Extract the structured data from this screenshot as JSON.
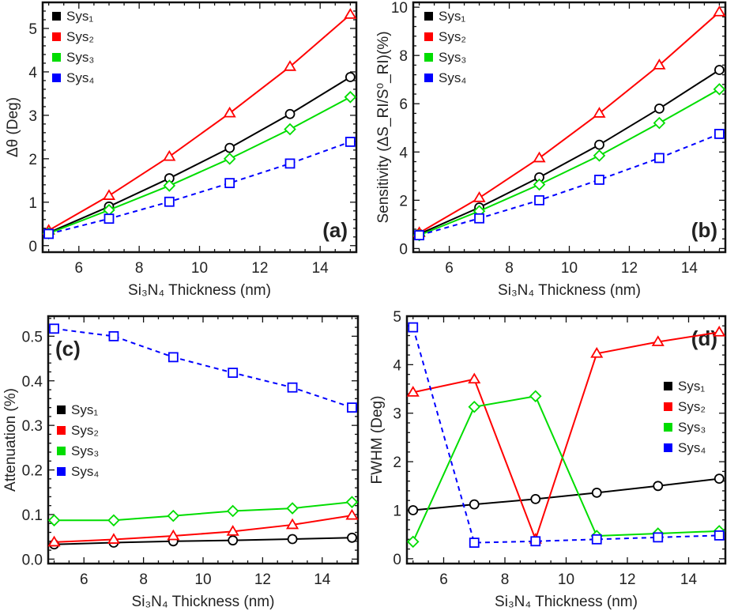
{
  "chart_data": [
    {
      "type": "line",
      "panel_label": "(a)",
      "xlabel": "Si₃N₄ Thickness (nm)",
      "ylabel": "Δθ (Deg)",
      "xlim": [
        4.8,
        15.2
      ],
      "ylim": [
        -0.15,
        5.6
      ],
      "xticks": [
        6,
        8,
        10,
        12,
        14
      ],
      "yticks": [
        0,
        1,
        2,
        3,
        4,
        5
      ],
      "legend_position": "top-left",
      "x": [
        5,
        7,
        9,
        11,
        13,
        15
      ],
      "series": [
        {
          "name": "Sys₁",
          "color": "#000000",
          "marker": "circle",
          "dashed": false,
          "values": [
            0.3,
            0.9,
            1.55,
            2.25,
            3.03,
            3.88
          ]
        },
        {
          "name": "Sys₂",
          "color": "#ff0000",
          "marker": "triangle",
          "dashed": false,
          "values": [
            0.35,
            1.15,
            2.05,
            3.05,
            4.12,
            5.32
          ]
        },
        {
          "name": "Sys₃",
          "color": "#00dd00",
          "marker": "diamond",
          "dashed": false,
          "values": [
            0.28,
            0.82,
            1.38,
            2.0,
            2.68,
            3.42
          ]
        },
        {
          "name": "Sys₄",
          "color": "#0000ff",
          "marker": "square",
          "dashed": true,
          "values": [
            0.27,
            0.62,
            1.01,
            1.44,
            1.89,
            2.39
          ]
        }
      ]
    },
    {
      "type": "line",
      "panel_label": "(b)",
      "xlabel": "Si₃N₄ Thickness (nm)",
      "ylabel": "Sensitivity (ΔS_RI/S⁰_RI)(%)",
      "xlim": [
        4.8,
        15.2
      ],
      "ylim": [
        -0.15,
        10.2
      ],
      "xticks": [
        6,
        8,
        10,
        12,
        14
      ],
      "yticks": [
        0,
        2,
        4,
        6,
        8,
        10
      ],
      "legend_position": "top-left",
      "x": [
        5,
        7,
        9,
        11,
        13,
        15
      ],
      "series": [
        {
          "name": "Sys₁",
          "color": "#000000",
          "marker": "circle",
          "dashed": false,
          "values": [
            0.6,
            1.7,
            2.95,
            4.3,
            5.8,
            7.4
          ]
        },
        {
          "name": "Sys₂",
          "color": "#ff0000",
          "marker": "triangle",
          "dashed": false,
          "values": [
            0.65,
            2.1,
            3.75,
            5.6,
            7.6,
            9.8
          ]
        },
        {
          "name": "Sys₃",
          "color": "#00dd00",
          "marker": "diamond",
          "dashed": false,
          "values": [
            0.55,
            1.55,
            2.65,
            3.85,
            5.2,
            6.6
          ]
        },
        {
          "name": "Sys₄",
          "color": "#0000ff",
          "marker": "square",
          "dashed": true,
          "values": [
            0.55,
            1.25,
            2.0,
            2.85,
            3.75,
            4.75
          ]
        }
      ]
    },
    {
      "type": "line",
      "panel_label": "(c)",
      "xlabel": "Si₃N₄ Thickness (nm)",
      "ylabel": "Attenuation (%)",
      "xlim": [
        4.8,
        15.2
      ],
      "ylim": [
        -0.01,
        0.545
      ],
      "xticks": [
        6,
        8,
        10,
        12,
        14
      ],
      "yticks": [
        "0.0",
        "0.1",
        "0.2",
        "0.3",
        "0.4",
        "0.5"
      ],
      "legend_position": "middle-left",
      "x": [
        5,
        7,
        9,
        11,
        13,
        15
      ],
      "series": [
        {
          "name": "Sys₁",
          "color": "#000000",
          "marker": "circle",
          "dashed": false,
          "values": [
            0.033,
            0.037,
            0.04,
            0.042,
            0.045,
            0.048
          ]
        },
        {
          "name": "Sys₂",
          "color": "#ff0000",
          "marker": "triangle",
          "dashed": false,
          "values": [
            0.038,
            0.044,
            0.052,
            0.062,
            0.077,
            0.098
          ]
        },
        {
          "name": "Sys₃",
          "color": "#00dd00",
          "marker": "diamond",
          "dashed": false,
          "values": [
            0.087,
            0.087,
            0.097,
            0.108,
            0.114,
            0.128
          ]
        },
        {
          "name": "Sys₄",
          "color": "#0000ff",
          "marker": "square",
          "dashed": true,
          "values": [
            0.517,
            0.5,
            0.453,
            0.418,
            0.385,
            0.34
          ]
        }
      ]
    },
    {
      "type": "line",
      "panel_label": "(d)",
      "xlabel": "Si₃N₄ Thickness (nm)",
      "ylabel": "FWHM (Deg)",
      "xlim": [
        4.8,
        15.2
      ],
      "ylim": [
        -0.1,
        5.0
      ],
      "xticks": [
        6,
        8,
        10,
        12,
        14
      ],
      "yticks": [
        0,
        1,
        2,
        3,
        4,
        5
      ],
      "legend_position": "middle-right",
      "x": [
        5,
        7,
        9,
        11,
        13,
        15
      ],
      "series": [
        {
          "name": "Sys₁",
          "color": "#000000",
          "marker": "circle",
          "dashed": false,
          "values": [
            1.0,
            1.12,
            1.23,
            1.36,
            1.5,
            1.65
          ]
        },
        {
          "name": "Sys₂",
          "color": "#ff0000",
          "marker": "triangle",
          "dashed": false,
          "values": [
            3.43,
            3.7,
            0.4,
            4.23,
            4.47,
            4.67
          ]
        },
        {
          "name": "Sys₃",
          "color": "#00dd00",
          "marker": "diamond",
          "dashed": false,
          "values": [
            0.35,
            3.13,
            3.35,
            0.47,
            0.52,
            0.57
          ]
        },
        {
          "name": "Sys₄",
          "color": "#0000ff",
          "marker": "square",
          "dashed": true,
          "values": [
            4.77,
            0.33,
            0.36,
            0.4,
            0.44,
            0.48
          ]
        }
      ]
    }
  ]
}
